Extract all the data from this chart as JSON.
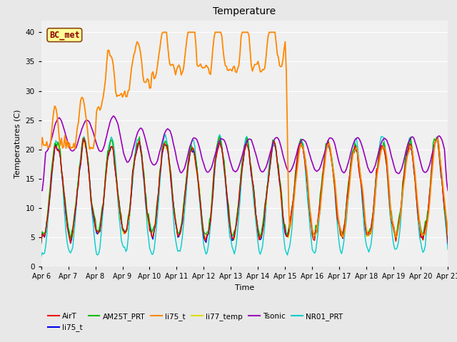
{
  "title": "Temperature",
  "xlabel": "Time",
  "ylabel": "Temperatures (C)",
  "ylim": [
    0,
    42
  ],
  "yticks": [
    0,
    5,
    10,
    15,
    20,
    25,
    30,
    35,
    40
  ],
  "annotation": "BC_met",
  "annotation_color": "#8B0000",
  "annotation_bg": "#FFFF99",
  "bg_color": "#E8E8E8",
  "plot_bg": "#F0F0F0",
  "legend_labels": [
    "AirT",
    "li75_t",
    "AM25T_PRT",
    "li75_t",
    "li77_temp",
    "Tsonic",
    "NR01_PRT"
  ],
  "legend_colors": [
    "#FF0000",
    "#0000FF",
    "#00BB00",
    "#FF8800",
    "#FFFF00",
    "#9900BB",
    "#00CCCC"
  ]
}
